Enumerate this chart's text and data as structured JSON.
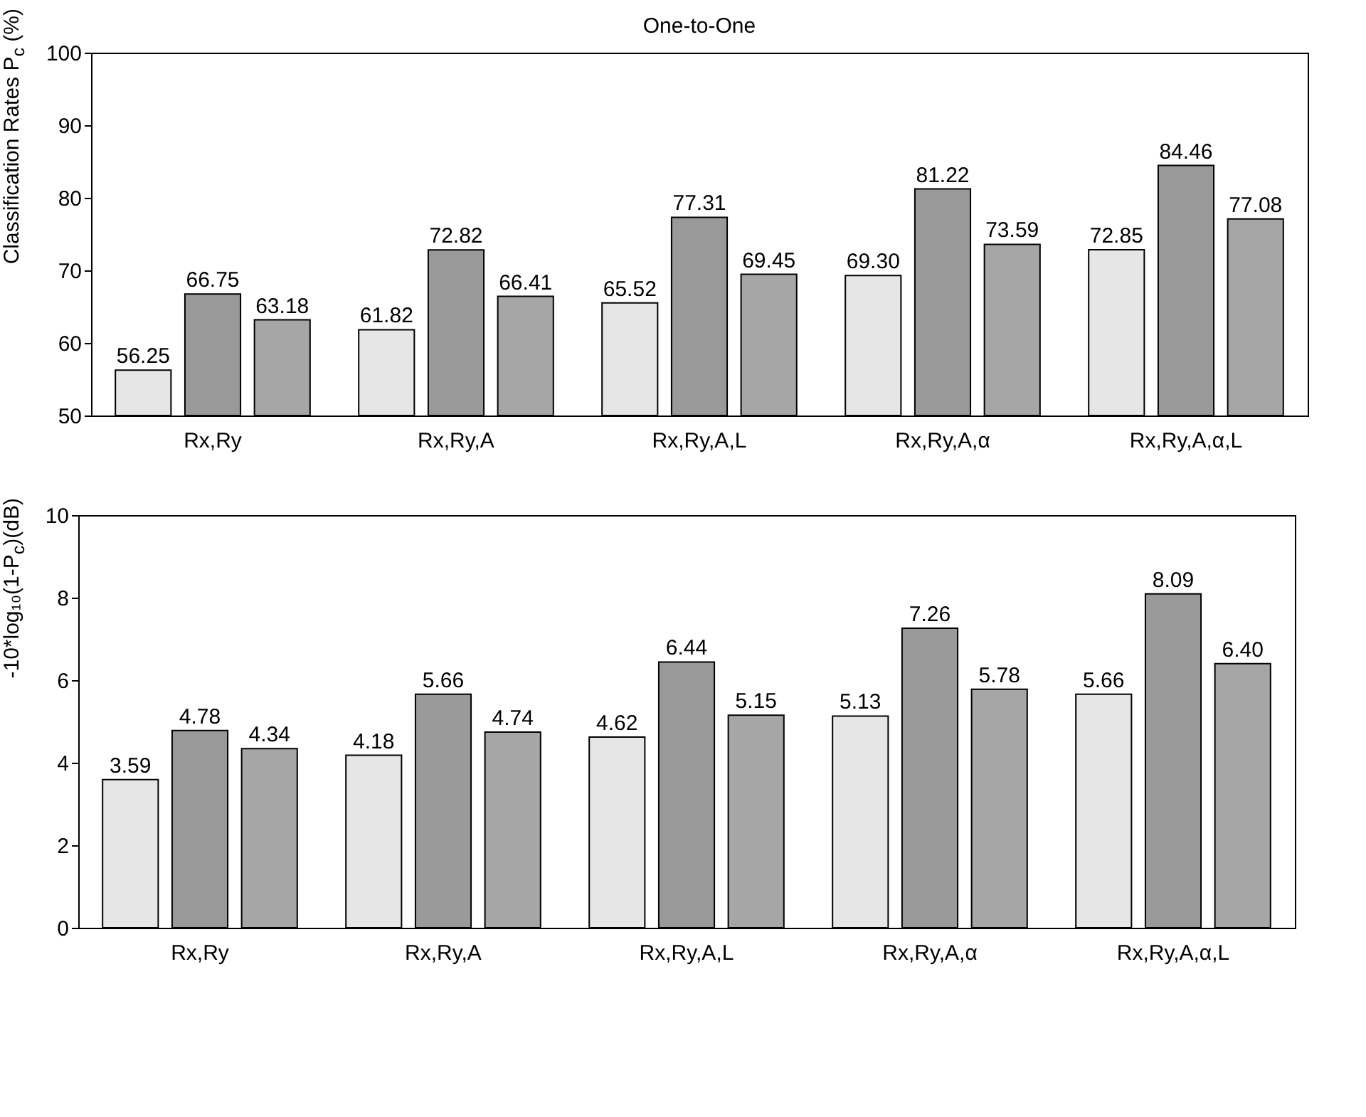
{
  "chart_data": [
    {
      "type": "bar",
      "title": "One-to-One",
      "ylabel": "Classification Rates P$_{c}$ (%)",
      "categories": [
        "Rx,Ry",
        "Rx,Ry,A",
        "Rx,Ry,A,L",
        "Rx,Ry,A,α",
        "Rx,Ry,A,α,L"
      ],
      "series": [
        {
          "color": "#e6e6e6",
          "values": [
            56.25,
            61.82,
            65.52,
            69.3,
            72.85
          ]
        },
        {
          "color": "#999999",
          "values": [
            66.75,
            72.82,
            77.31,
            81.22,
            84.46
          ]
        },
        {
          "color": "#a6a6a6",
          "values": [
            63.18,
            66.41,
            69.45,
            73.59,
            77.08
          ]
        }
      ],
      "ylim": [
        50,
        100
      ],
      "yticks": [
        50,
        60,
        70,
        80,
        90,
        100
      ],
      "value_labels": [
        [
          "56.25",
          "61.82",
          "65.52",
          "69.30",
          "72.85"
        ],
        [
          "66.75",
          "72.82",
          "77.31",
          "81.22",
          "84.46"
        ],
        [
          "63.18",
          "66.41",
          "69.45",
          "73.59",
          "77.08"
        ]
      ],
      "grid": false,
      "legend": false
    },
    {
      "type": "bar",
      "ylabel": "-10*log₁₀(1-P$_{c}$)(dB)",
      "categories": [
        "Rx,Ry",
        "Rx,Ry,A",
        "Rx,Ry,A,L",
        "Rx,Ry,A,α",
        "Rx,Ry,A,α,L"
      ],
      "series": [
        {
          "color": "#e6e6e6",
          "values": [
            3.59,
            4.18,
            4.62,
            5.13,
            5.66
          ]
        },
        {
          "color": "#999999",
          "values": [
            4.78,
            5.66,
            6.44,
            7.26,
            8.09
          ]
        },
        {
          "color": "#a6a6a6",
          "values": [
            4.34,
            4.74,
            5.15,
            5.78,
            6.4
          ]
        }
      ],
      "ylim": [
        0,
        10
      ],
      "yticks": [
        0,
        2,
        4,
        6,
        8,
        10
      ],
      "value_labels": [
        [
          "3.59",
          "4.18",
          "4.62",
          "5.13",
          "5.66"
        ],
        [
          "4.78",
          "5.66",
          "6.44",
          "7.26",
          "8.09"
        ],
        [
          "4.34",
          "4.74",
          "5.15",
          "5.78",
          "6.40"
        ]
      ],
      "grid": false,
      "legend": false
    }
  ]
}
